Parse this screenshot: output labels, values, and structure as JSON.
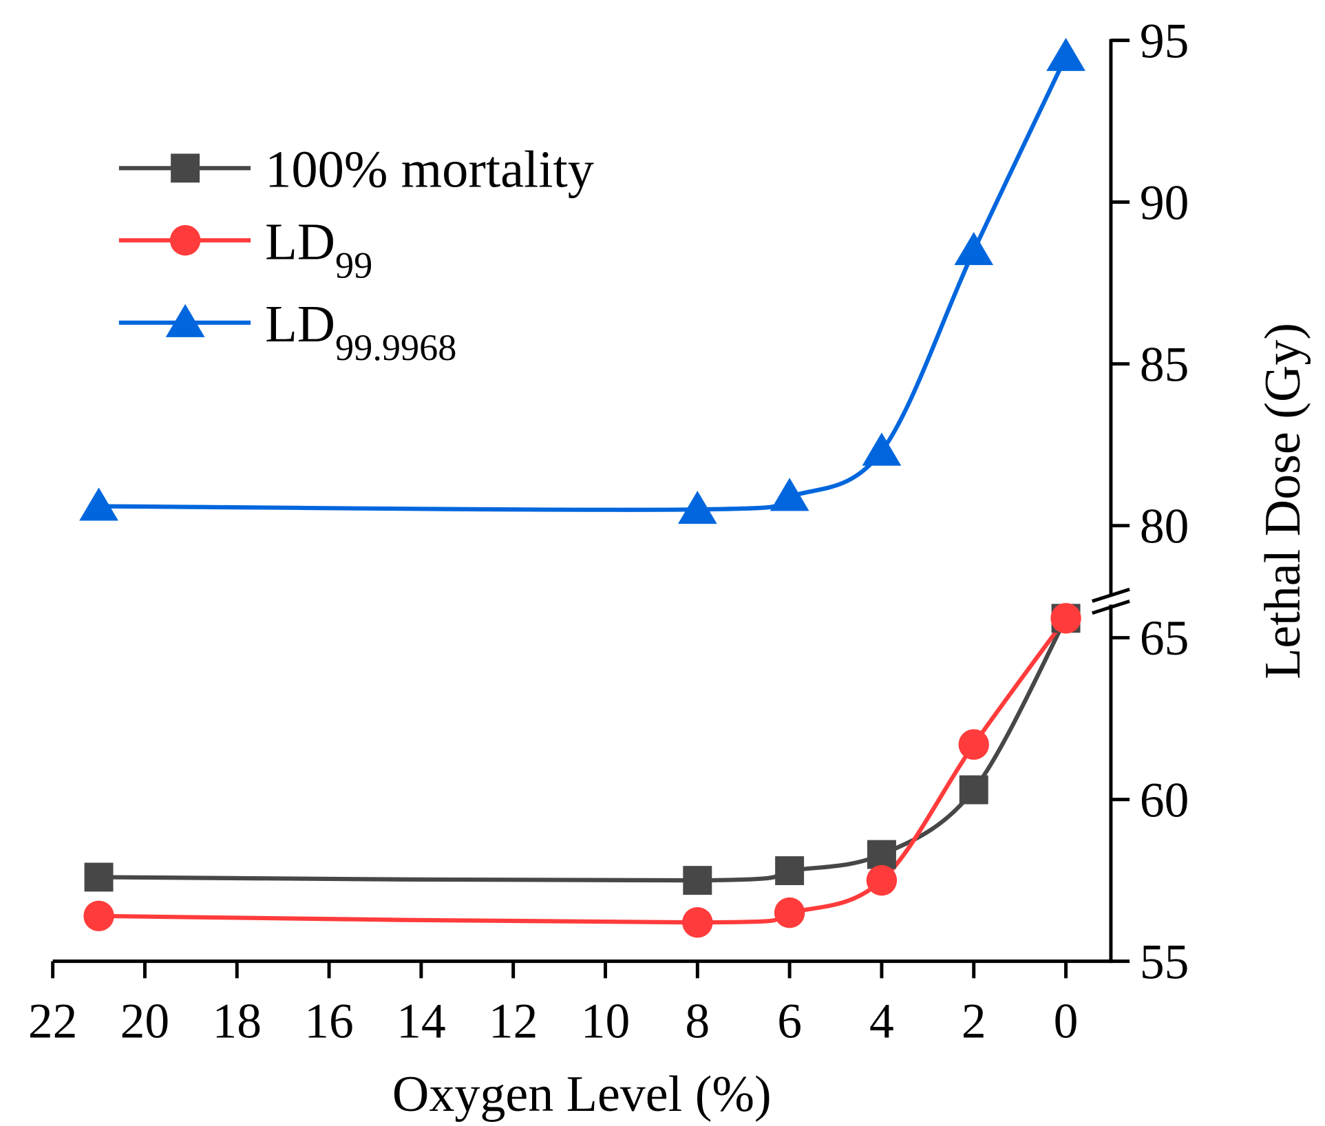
{
  "chart_data": {
    "type": "line",
    "title": "",
    "xlabel": "Oxygen Level (%)",
    "ylabel": "Lethal Dose (Gy)",
    "x_reversed": true,
    "xlim": [
      22,
      0
    ],
    "x_ticks": [
      22,
      20,
      18,
      16,
      14,
      12,
      10,
      8,
      6,
      4,
      2,
      0
    ],
    "y_axis_side": "right",
    "y_break": {
      "lower": [
        55,
        66
      ],
      "upper": [
        79.5,
        95
      ]
    },
    "y_ticks": [
      55,
      60,
      65,
      80,
      85,
      90,
      95
    ],
    "grid": false,
    "legend_position": "top-left",
    "x": [
      21,
      8,
      6,
      4,
      2,
      0
    ],
    "series": [
      {
        "name": "100% mortality",
        "name_main": "100% mortality",
        "name_sub": "",
        "marker": "square",
        "color": "#474747",
        "values": [
          57.6,
          57.5,
          57.8,
          58.3,
          60.3,
          65.6
        ]
      },
      {
        "name": "LD99",
        "name_main": "LD",
        "name_sub": "99",
        "marker": "circle",
        "color": "#ff3b3b",
        "values": [
          56.4,
          56.2,
          56.5,
          57.5,
          61.7,
          65.6
        ]
      },
      {
        "name": "LD99.9968",
        "name_main": "LD",
        "name_sub": "99.9968",
        "marker": "triangle",
        "color": "#0066dd",
        "values": [
          80.6,
          80.5,
          80.9,
          82.3,
          88.5,
          94.5
        ]
      }
    ]
  }
}
